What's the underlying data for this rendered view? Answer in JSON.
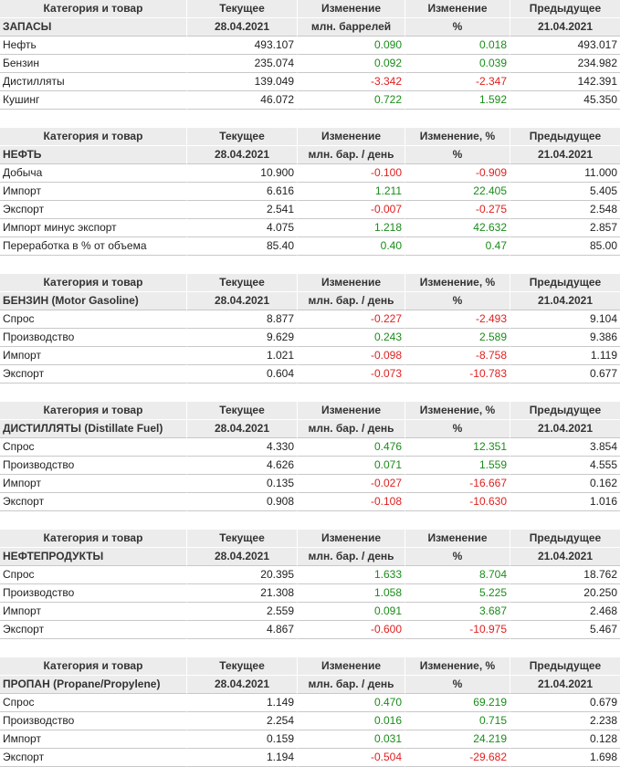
{
  "colors": {
    "positive": "#1a8c1a",
    "negative": "#e02020",
    "header_bg": "#ececec"
  },
  "sections": [
    {
      "header": [
        "Категория и товар",
        "Текущее",
        "Изменение",
        "Изменение",
        "Предыдущее"
      ],
      "subheader": [
        "ЗАПАСЫ",
        "28.04.2021",
        "млн. баррелей",
        "%",
        "21.04.2021"
      ],
      "rows": [
        [
          "Нефть",
          "493.107",
          "0.090",
          "0.018",
          "493.017"
        ],
        [
          "Бензин",
          "235.074",
          "0.092",
          "0.039",
          "234.982"
        ],
        [
          "Дистилляты",
          "139.049",
          "-3.342",
          "-2.347",
          "142.391"
        ],
        [
          "Кушинг",
          "46.072",
          "0.722",
          "1.592",
          "45.350"
        ]
      ]
    },
    {
      "header": [
        "Категория и товар",
        "Текущее",
        "Изменение",
        "Изменение, %",
        "Предыдущее"
      ],
      "subheader": [
        "НЕФТЬ",
        "28.04.2021",
        "млн. бар. / день",
        "%",
        "21.04.2021"
      ],
      "rows": [
        [
          "Добыча",
          "10.900",
          "-0.100",
          "-0.909",
          "11.000"
        ],
        [
          "Импорт",
          "6.616",
          "1.211",
          "22.405",
          "5.405"
        ],
        [
          "Экспорт",
          "2.541",
          "-0.007",
          "-0.275",
          "2.548"
        ],
        [
          "Импорт минус экспорт",
          "4.075",
          "1.218",
          "42.632",
          "2.857"
        ],
        [
          "Переработка в % от объема",
          "85.40",
          "0.40",
          "0.47",
          "85.00"
        ]
      ]
    },
    {
      "header": [
        "Категория и товар",
        "Текущее",
        "Изменение",
        "Изменение, %",
        "Предыдущее"
      ],
      "subheader": [
        "БЕНЗИН (Motor Gasoline)",
        "28.04.2021",
        "млн. бар. / день",
        "%",
        "21.04.2021"
      ],
      "rows": [
        [
          "Спрос",
          "8.877",
          "-0.227",
          "-2.493",
          "9.104"
        ],
        [
          "Производство",
          "9.629",
          "0.243",
          "2.589",
          "9.386"
        ],
        [
          "Импорт",
          "1.021",
          "-0.098",
          "-8.758",
          "1.119"
        ],
        [
          "Экспорт",
          "0.604",
          "-0.073",
          "-10.783",
          "0.677"
        ]
      ]
    },
    {
      "header": [
        "Категория и товар",
        "Текущее",
        "Изменение",
        "Изменение, %",
        "Предыдущее"
      ],
      "subheader": [
        "ДИСТИЛЛЯТЫ (Distillate Fuel)",
        "28.04.2021",
        "млн. бар. / день",
        "%",
        "21.04.2021"
      ],
      "rows": [
        [
          "Спрос",
          "4.330",
          "0.476",
          "12.351",
          "3.854"
        ],
        [
          "Производство",
          "4.626",
          "0.071",
          "1.559",
          "4.555"
        ],
        [
          "Импорт",
          "0.135",
          "-0.027",
          "-16.667",
          "0.162"
        ],
        [
          "Экспорт",
          "0.908",
          "-0.108",
          "-10.630",
          "1.016"
        ]
      ]
    },
    {
      "header": [
        "Категория и товар",
        "Текущее",
        "Изменение",
        "Изменение",
        "Предыдущее"
      ],
      "subheader": [
        "НЕФТЕПРОДУКТЫ",
        "28.04.2021",
        "млн. бар. / день",
        "%",
        "21.04.2021"
      ],
      "rows": [
        [
          "Спрос",
          "20.395",
          "1.633",
          "8.704",
          "18.762"
        ],
        [
          "Производство",
          "21.308",
          "1.058",
          "5.225",
          "20.250"
        ],
        [
          "Импорт",
          "2.559",
          "0.091",
          "3.687",
          "2.468"
        ],
        [
          "Экспорт",
          "4.867",
          "-0.600",
          "-10.975",
          "5.467"
        ]
      ]
    },
    {
      "header": [
        "Категория и товар",
        "Текущее",
        "Изменение",
        "Изменение, %",
        "Предыдущее"
      ],
      "subheader": [
        "ПРОПАН (Propane/Propylene)",
        "28.04.2021",
        "млн. бар. / день",
        "%",
        "21.04.2021"
      ],
      "rows": [
        [
          "Спрос",
          "1.149",
          "0.470",
          "69.219",
          "0.679"
        ],
        [
          "Производство",
          "2.254",
          "0.016",
          "0.715",
          "2.238"
        ],
        [
          "Импорт",
          "0.159",
          "0.031",
          "24.219",
          "0.128"
        ],
        [
          "Экспорт",
          "1.194",
          "-0.504",
          "-29.682",
          "1.698"
        ]
      ]
    }
  ]
}
